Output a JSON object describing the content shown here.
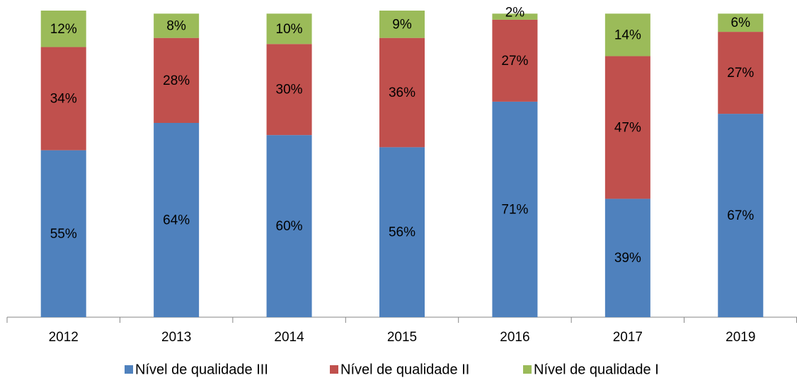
{
  "chart_data": {
    "type": "stacked_bar",
    "categories": [
      "2012",
      "2013",
      "2014",
      "2015",
      "2016",
      "2017",
      "2019"
    ],
    "series": [
      {
        "name": "Nível de qualidade III",
        "color": "#4f81bd",
        "values": [
          55,
          64,
          60,
          56,
          71,
          39,
          67
        ],
        "value_labels": [
          "55%",
          "64%",
          "60%",
          "56%",
          "71%",
          "39%",
          "67%"
        ]
      },
      {
        "name": "Nível de qualidade II",
        "color": "#c0504d",
        "values": [
          34,
          28,
          30,
          36,
          27,
          47,
          27
        ],
        "value_labels": [
          "34%",
          "28%",
          "30%",
          "36%",
          "27%",
          "47%",
          "27%"
        ]
      },
      {
        "name": "Nível de qualidade I",
        "color": "#9bbb59",
        "values": [
          12,
          8,
          10,
          9,
          2,
          14,
          6
        ],
        "value_labels": [
          "12%",
          "8%",
          "10%",
          "9%",
          "2%",
          "14%",
          "6%"
        ]
      }
    ],
    "legend": "bottom"
  }
}
